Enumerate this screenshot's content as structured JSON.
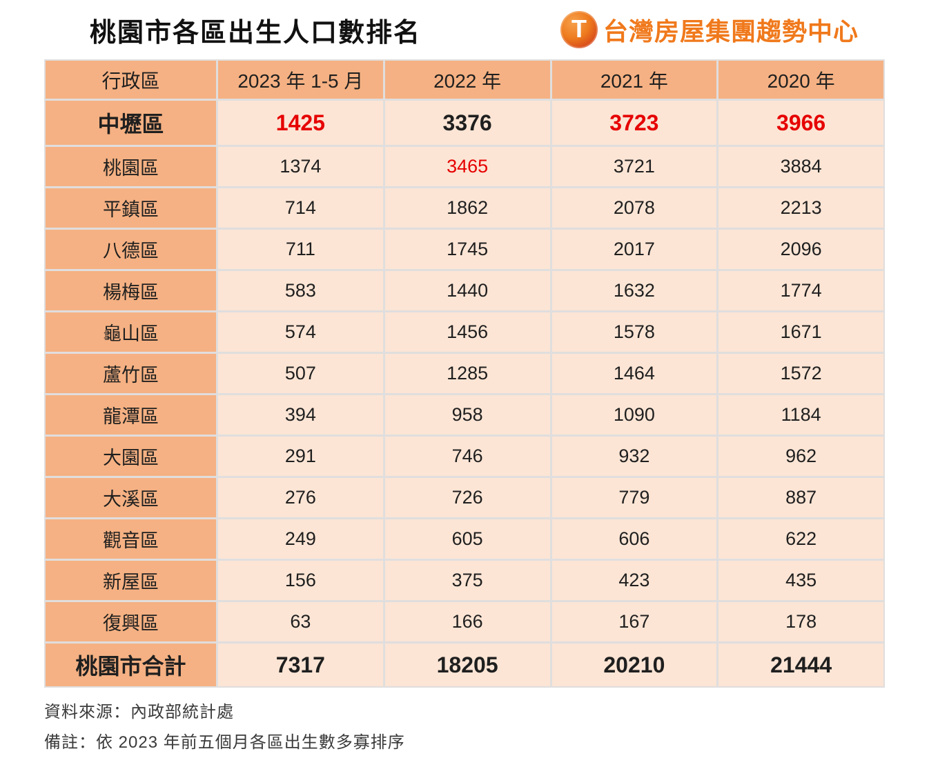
{
  "title": "桃園市各區出生人口數排名",
  "brand": {
    "icon_letter": "T",
    "text": "台灣房屋集團趨勢中心"
  },
  "table": {
    "columns": [
      "行政區",
      "2023 年 1-5 月",
      "2022 年",
      "2021 年",
      "2020 年"
    ],
    "rows": [
      {
        "district": "中壢區",
        "values": [
          "1425",
          "3376",
          "3723",
          "3966"
        ],
        "red": [
          0,
          2,
          3
        ],
        "bold": true,
        "is_total": false
      },
      {
        "district": "桃園區",
        "values": [
          "1374",
          "3465",
          "3721",
          "3884"
        ],
        "red": [
          1
        ],
        "bold": false,
        "is_total": false
      },
      {
        "district": "平鎮區",
        "values": [
          "714",
          "1862",
          "2078",
          "2213"
        ],
        "red": [],
        "bold": false,
        "is_total": false
      },
      {
        "district": "八德區",
        "values": [
          "711",
          "1745",
          "2017",
          "2096"
        ],
        "red": [],
        "bold": false,
        "is_total": false
      },
      {
        "district": "楊梅區",
        "values": [
          "583",
          "1440",
          "1632",
          "1774"
        ],
        "red": [],
        "bold": false,
        "is_total": false
      },
      {
        "district": "龜山區",
        "values": [
          "574",
          "1456",
          "1578",
          "1671"
        ],
        "red": [],
        "bold": false,
        "is_total": false
      },
      {
        "district": "蘆竹區",
        "values": [
          "507",
          "1285",
          "1464",
          "1572"
        ],
        "red": [],
        "bold": false,
        "is_total": false
      },
      {
        "district": "龍潭區",
        "values": [
          "394",
          "958",
          "1090",
          "1184"
        ],
        "red": [],
        "bold": false,
        "is_total": false
      },
      {
        "district": "大園區",
        "values": [
          "291",
          "746",
          "932",
          "962"
        ],
        "red": [],
        "bold": false,
        "is_total": false
      },
      {
        "district": "大溪區",
        "values": [
          "276",
          "726",
          "779",
          "887"
        ],
        "red": [],
        "bold": false,
        "is_total": false
      },
      {
        "district": "觀音區",
        "values": [
          "249",
          "605",
          "606",
          "622"
        ],
        "red": [],
        "bold": false,
        "is_total": false
      },
      {
        "district": "新屋區",
        "values": [
          "156",
          "375",
          "423",
          "435"
        ],
        "red": [],
        "bold": false,
        "is_total": false
      },
      {
        "district": "復興區",
        "values": [
          "63",
          "166",
          "167",
          "178"
        ],
        "red": [],
        "bold": false,
        "is_total": false
      },
      {
        "district": "桃園市合計",
        "values": [
          "7317",
          "18205",
          "20210",
          "21444"
        ],
        "red": [],
        "bold": true,
        "is_total": true
      }
    ]
  },
  "notes": {
    "source": "資料來源：內政部統計處",
    "remark": "備註：依 2023 年前五個月各區出生數多寡排序"
  },
  "colors": {
    "header_bg": "#f5b183",
    "cell_bg": "#fce5d5",
    "grid_line": "#e0dede",
    "highlight_red": "#e60000",
    "brand_orange": "#f0791c"
  },
  "chart_data": {
    "type": "table",
    "title": "桃園市各區出生人口數排名",
    "categories": [
      "中壢區",
      "桃園區",
      "平鎮區",
      "八德區",
      "楊梅區",
      "龜山區",
      "蘆竹區",
      "龍潭區",
      "大園區",
      "大溪區",
      "觀音區",
      "新屋區",
      "復興區"
    ],
    "series": [
      {
        "name": "2023 年 1-5 月",
        "values": [
          1425,
          1374,
          714,
          711,
          583,
          574,
          507,
          394,
          291,
          276,
          249,
          156,
          63
        ]
      },
      {
        "name": "2022 年",
        "values": [
          3376,
          3465,
          1862,
          1745,
          1440,
          1456,
          1285,
          958,
          746,
          726,
          605,
          375,
          166
        ]
      },
      {
        "name": "2021 年",
        "values": [
          3723,
          3721,
          2078,
          2017,
          1632,
          1578,
          1464,
          1090,
          932,
          779,
          606,
          423,
          167
        ]
      },
      {
        "name": "2020 年",
        "values": [
          3966,
          3884,
          2213,
          2096,
          1774,
          1671,
          1572,
          1184,
          962,
          887,
          622,
          435,
          178
        ]
      }
    ],
    "totals": {
      "name": "桃園市合計",
      "values": [
        7317,
        18205,
        20210,
        21444
      ]
    },
    "annotations": [
      "資料來源：內政部統計處",
      "備註：依 2023 年前五個月各區出生數多寡排序"
    ]
  }
}
